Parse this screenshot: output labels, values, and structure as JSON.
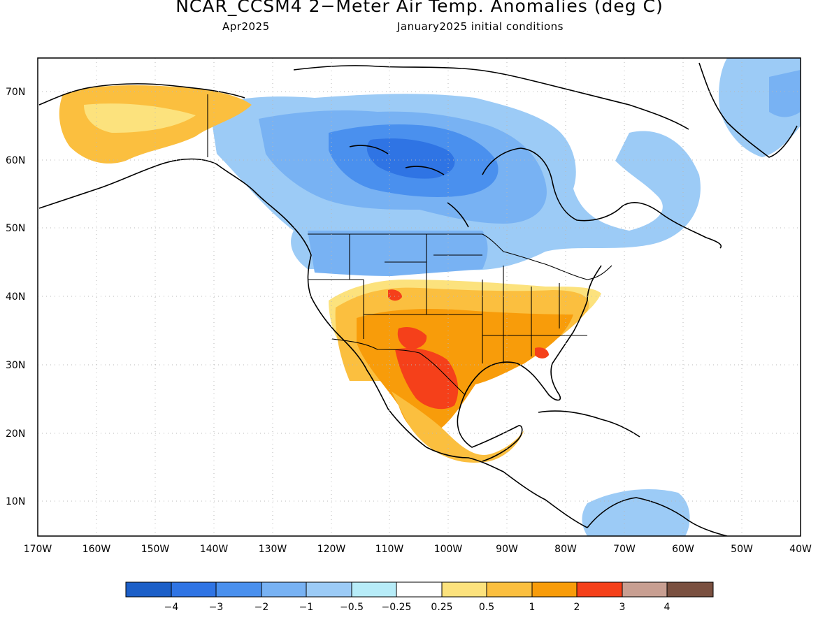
{
  "header": {
    "title": "NCAR_CCSM4 2−Meter Air Temp. Anomalies (deg C)",
    "valid_month": "Apr2025",
    "init_conditions": "January2025 initial conditions"
  },
  "map": {
    "lat_labels": [
      "70N",
      "60N",
      "50N",
      "40N",
      "30N",
      "20N",
      "10N"
    ],
    "lon_labels": [
      "170W",
      "160W",
      "150W",
      "140W",
      "130W",
      "120W",
      "110W",
      "100W",
      "90W",
      "80W",
      "70W",
      "60W",
      "50W",
      "40W"
    ],
    "lon_range": [
      -170,
      -40
    ],
    "lat_range": [
      5,
      75
    ],
    "grid": true
  },
  "colorbar": {
    "colors": [
      "#1c5fc8",
      "#2f74e4",
      "#4a90ee",
      "#78b2f3",
      "#9ccbf6",
      "#b7ecf8",
      "#ffffff",
      "#fce27d",
      "#fbbf3f",
      "#f89c0a",
      "#f5401a",
      "#c89f92",
      "#7a5040"
    ],
    "labels": [
      "−4",
      "−3",
      "−2",
      "−1",
      "−0.5",
      "−0.25",
      "0.25",
      "0.5",
      "1",
      "2",
      "3",
      "4"
    ]
  }
}
